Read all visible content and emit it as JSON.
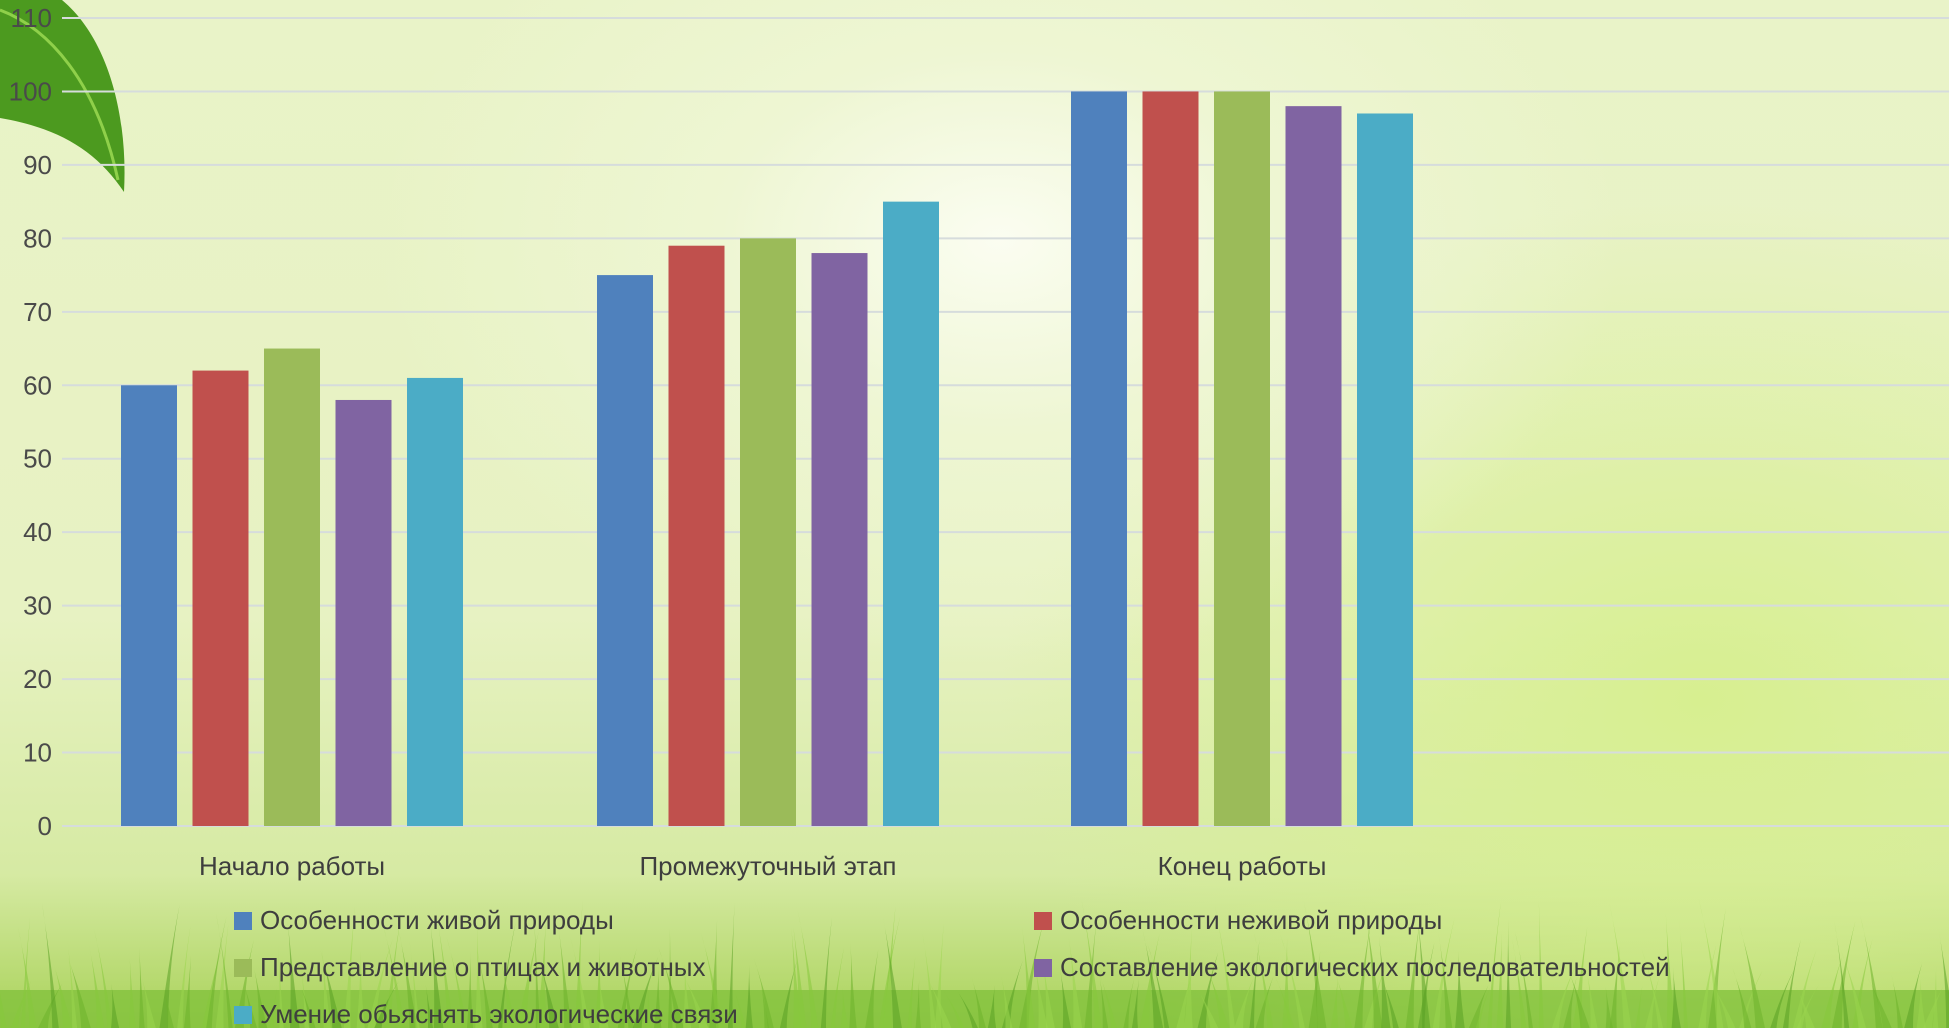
{
  "chart_data": {
    "type": "bar",
    "categories": [
      "Начало работы",
      "Промежуточный этап",
      "Конец работы"
    ],
    "series": [
      {
        "name": "Особенности живой природы",
        "color": "#4f81bd",
        "values": [
          60,
          75,
          100
        ]
      },
      {
        "name": "Особенности неживой природы",
        "color": "#c0504d",
        "values": [
          62,
          79,
          100
        ]
      },
      {
        "name": "Представление о птицах и животных",
        "color": "#9bbb59",
        "values": [
          65,
          80,
          100
        ]
      },
      {
        "name": "Составление экологических последовательностей",
        "color": "#8064a2",
        "values": [
          58,
          78,
          98
        ]
      },
      {
        "name": "Умение обьяснять экологические связи",
        "color": "#4bacc6",
        "values": [
          61,
          85,
          97
        ]
      }
    ],
    "yticks": [
      0,
      10,
      20,
      30,
      40,
      50,
      60,
      70,
      80,
      90,
      100,
      110
    ],
    "ylim": [
      0,
      110
    ],
    "grid": true,
    "legend_position": "bottom"
  }
}
